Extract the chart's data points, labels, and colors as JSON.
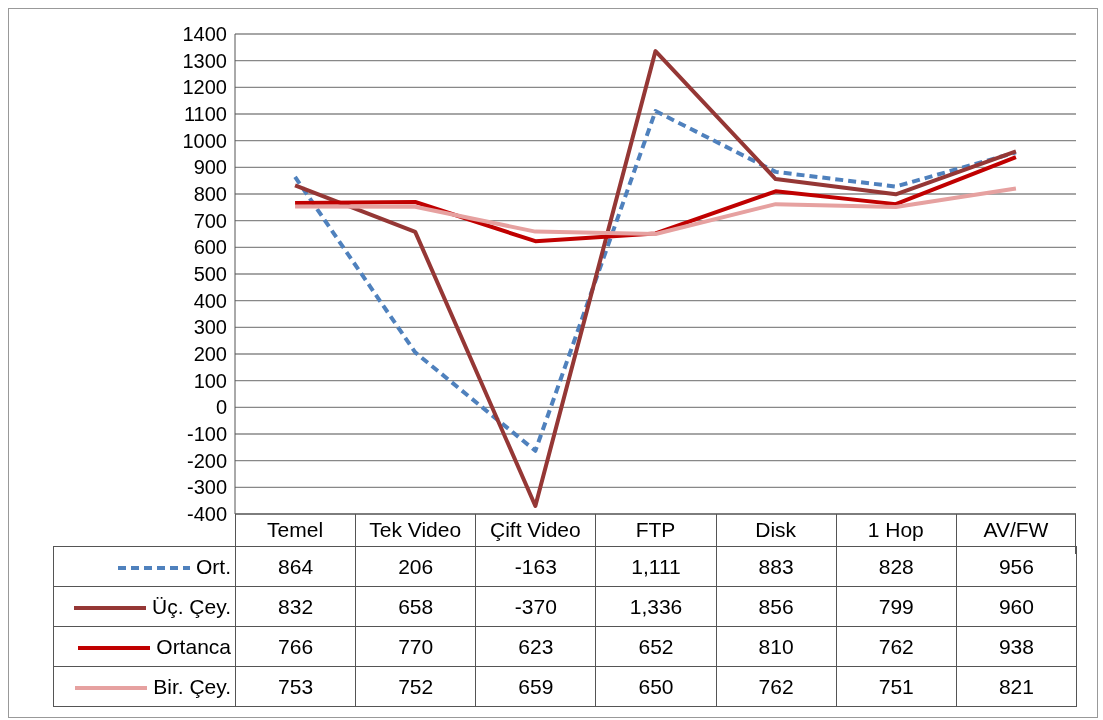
{
  "chart_data": {
    "type": "line",
    "categories": [
      "Temel",
      "Tek Video",
      "Çift Video",
      "FTP",
      "Disk",
      "1 Hop",
      "AV/FW"
    ],
    "series": [
      {
        "name": "Ort.",
        "color": "#4f81bd",
        "line_style": "dashed",
        "values": [
          864,
          206,
          -163,
          1111,
          883,
          828,
          956
        ],
        "value_labels": [
          "864",
          "206",
          "-163",
          "1,111",
          "883",
          "828",
          "956"
        ]
      },
      {
        "name": "Üç. Çey.",
        "color": "#953735",
        "line_style": "solid",
        "values": [
          832,
          658,
          -370,
          1336,
          856,
          799,
          960
        ],
        "value_labels": [
          "832",
          "658",
          "-370",
          "1,336",
          "856",
          "799",
          "960"
        ]
      },
      {
        "name": "Ortanca",
        "color": "#c00000",
        "line_style": "solid",
        "values": [
          766,
          770,
          623,
          652,
          810,
          762,
          938
        ],
        "value_labels": [
          "766",
          "770",
          "623",
          "652",
          "810",
          "762",
          "938"
        ]
      },
      {
        "name": "Bir. Çey.",
        "color": "#e6a1a0",
        "line_style": "solid",
        "values": [
          753,
          752,
          659,
          650,
          762,
          751,
          821
        ],
        "value_labels": [
          "753",
          "752",
          "659",
          "650",
          "762",
          "751",
          "821"
        ]
      }
    ],
    "ylim": [
      -400,
      1400
    ],
    "yticks": [
      -400,
      -300,
      -200,
      -100,
      0,
      100,
      200,
      300,
      400,
      500,
      600,
      700,
      800,
      900,
      1000,
      1100,
      1200,
      1300,
      1400
    ],
    "grid": "y",
    "legend": "bottom",
    "marker": "none"
  }
}
